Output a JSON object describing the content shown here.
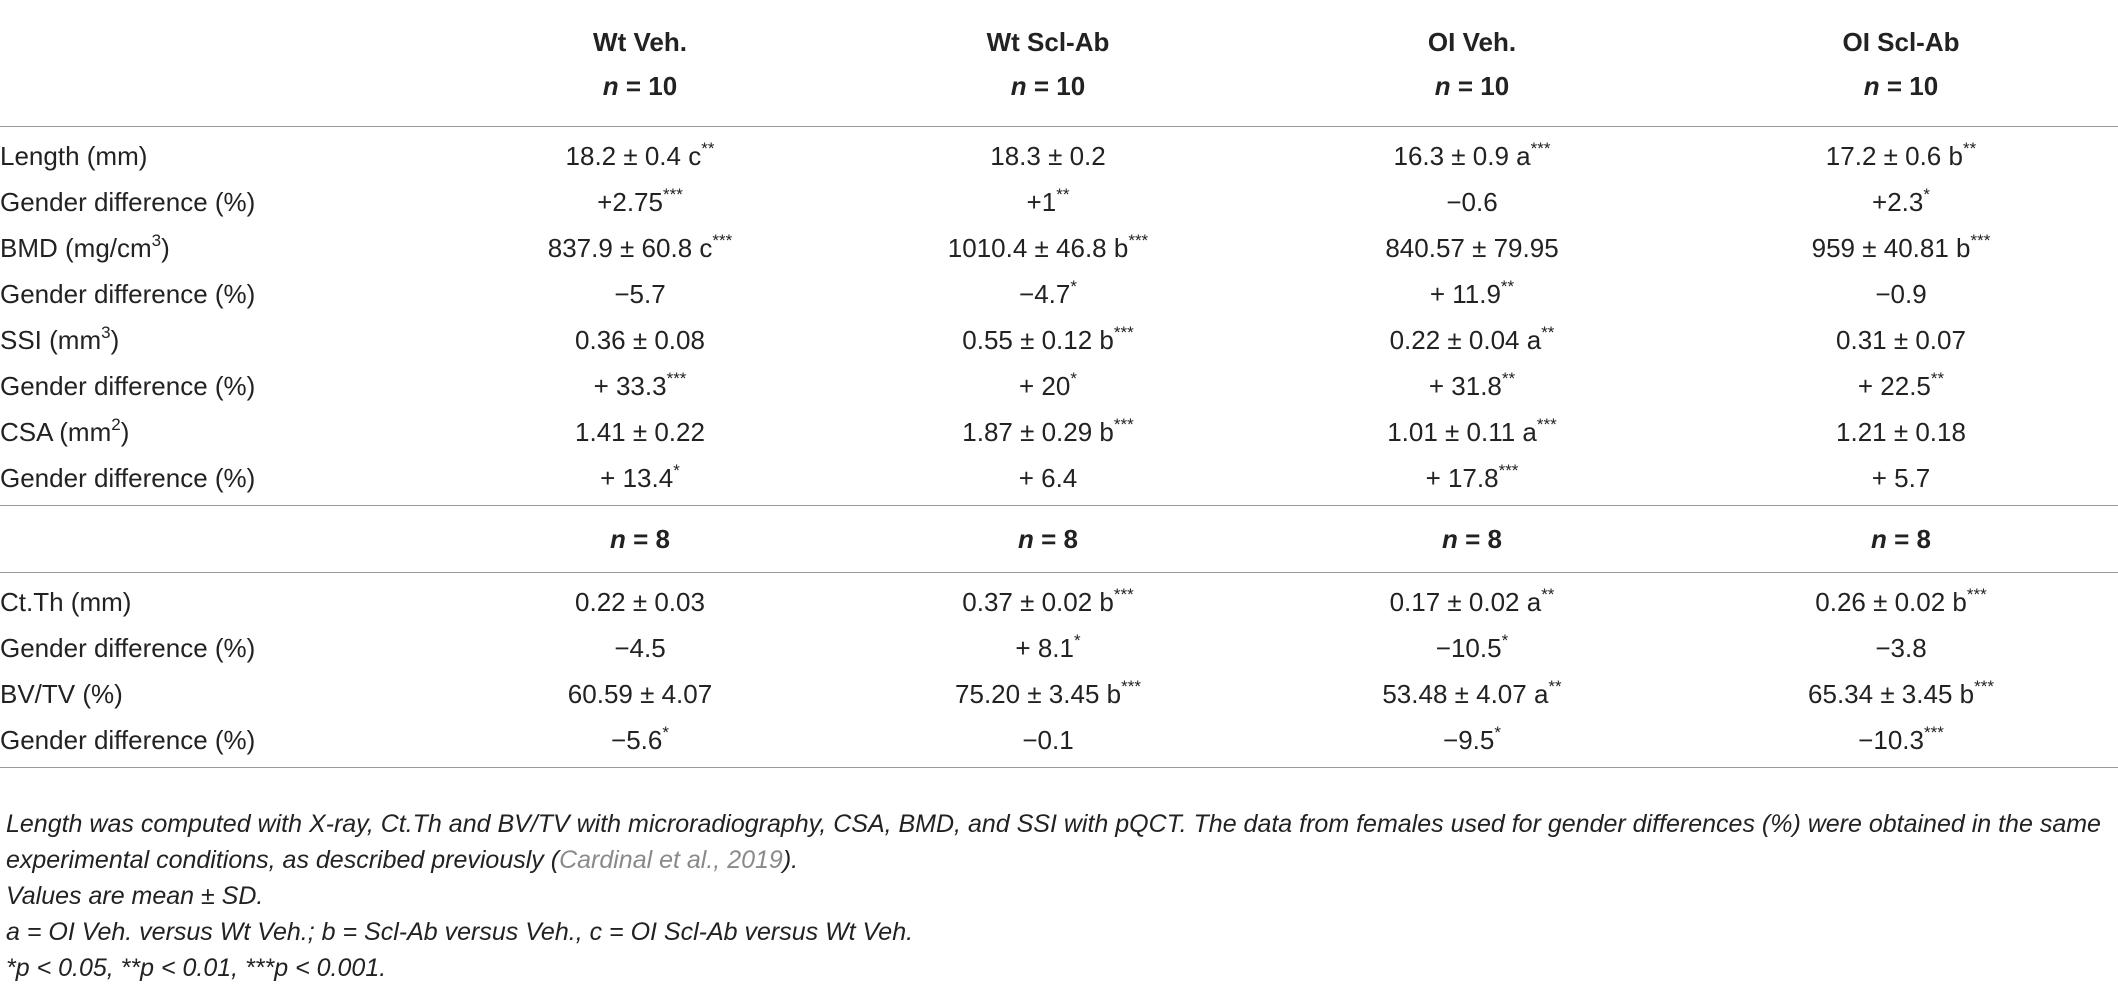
{
  "columns": [
    {
      "group": "Wt Veh.",
      "n1": "n = 10",
      "n2": "n = 8"
    },
    {
      "group": "Wt Scl-Ab",
      "n1": "n = 10",
      "n2": "n = 8"
    },
    {
      "group": "OI Veh.",
      "n1": "n = 10",
      "n2": "n = 8"
    },
    {
      "group": "OI Scl-Ab",
      "n1": "n = 10",
      "n2": "n = 8"
    }
  ],
  "section1": [
    {
      "label": "Length (mm)",
      "cells": [
        "18.2 ± 0.4 c**",
        "18.3 ± 0.2",
        "16.3 ± 0.9 a***",
        "17.2 ± 0.6 b**"
      ]
    },
    {
      "label": "Gender difference (%)",
      "cells": [
        "+2.75***",
        "+1**",
        "−0.6",
        "+2.3*"
      ]
    },
    {
      "label": "BMD (mg/cm3)",
      "cells": [
        "837.9 ± 60.8 c***",
        "1010.4 ± 46.8 b***",
        "840.57 ± 79.95",
        "959 ± 40.81 b***"
      ]
    },
    {
      "label": "Gender difference (%)",
      "cells": [
        "−5.7",
        "−4.7*",
        "+ 11.9**",
        "−0.9"
      ]
    },
    {
      "label": "SSI (mm3)",
      "cells": [
        "0.36 ± 0.08",
        "0.55 ± 0.12 b***",
        "0.22 ± 0.04 a**",
        "0.31 ± 0.07"
      ]
    },
    {
      "label": "Gender difference (%)",
      "cells": [
        "+ 33.3***",
        "+ 20*",
        "+ 31.8**",
        "+ 22.5**"
      ]
    },
    {
      "label": "CSA (mm2)",
      "cells": [
        "1.41 ± 0.22",
        "1.87 ± 0.29 b***",
        "1.01 ± 0.11 a***",
        "1.21 ± 0.18"
      ]
    },
    {
      "label": "Gender difference (%)",
      "cells": [
        "+ 13.4*",
        "+ 6.4",
        "+ 17.8***",
        "+ 5.7"
      ]
    }
  ],
  "section2": [
    {
      "label": "Ct.Th (mm)",
      "cells": [
        "0.22 ± 0.03",
        "0.37 ± 0.02 b***",
        "0.17 ± 0.02 a**",
        "0.26 ± 0.02 b***"
      ]
    },
    {
      "label": "Gender difference (%)",
      "cells": [
        "−4.5",
        "+ 8.1*",
        "−10.5*",
        "−3.8"
      ]
    },
    {
      "label": "BV/TV (%)",
      "cells": [
        "60.59 ± 4.07",
        "75.20 ± 3.45 b***",
        "53.48 ± 4.07 a**",
        "65.34 ± 3.45 b***"
      ]
    },
    {
      "label": "Gender difference (%)",
      "cells": [
        "−5.6*",
        "−0.1",
        "−9.5*",
        "−10.3***"
      ]
    }
  ],
  "notes": {
    "line1_before_cite": "Length was computed with X-ray, Ct.Th and BV/TV with microradiography, CSA, BMD, and SSI with pQCT. The data from females used for gender differences (%) were obtained in the same experimental conditions, as described previously (",
    "citation": "Cardinal et al., 2019",
    "line1_after_cite": ").",
    "line2": "Values are mean ± SD.",
    "line3": "a = OI Veh. versus Wt Veh.; b = Scl-Ab versus Veh., c = OI Scl-Ab versus Wt Veh.",
    "line4": "*p < 0.05, **p < 0.01, ***p < 0.001."
  }
}
